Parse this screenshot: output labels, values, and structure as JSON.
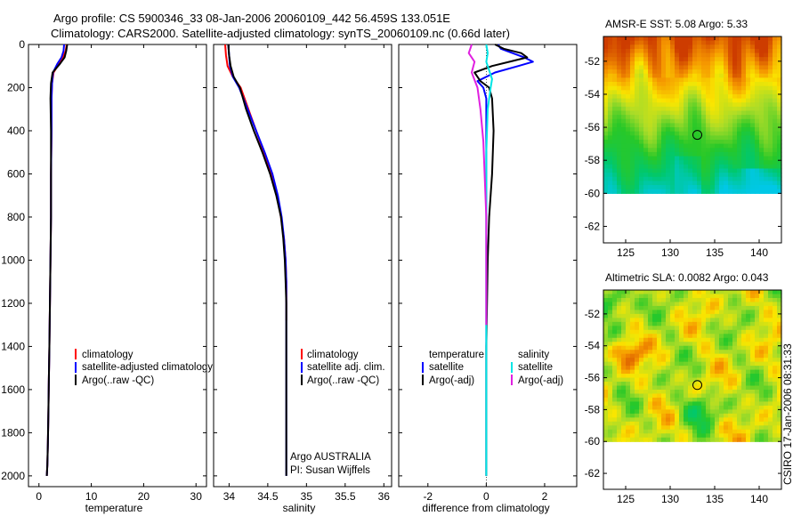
{
  "header": {
    "title_line1": "Argo profile: CS 5900346_33 08-Jan-2006 20060109_442 56.459S 133.051E",
    "title_line2": "Climatology: CARS2000. Satellite-adjusted climatology: synTS_20060109.nc (0.66d later)"
  },
  "colors": {
    "climatology": "#ff0000",
    "satellite": "#0000ff",
    "argo": "#000000",
    "satellite_salinity": "#00e5e5",
    "argo_salinity": "#e020e0"
  },
  "chart_data": [
    {
      "type": "line",
      "name": "temperature-profile",
      "xlabel": "temperature",
      "ylabel": "",
      "xlim": [
        -2,
        32
      ],
      "ylim": [
        2050,
        0
      ],
      "xticks": [
        0,
        10,
        20,
        30
      ],
      "yticks": [
        0,
        200,
        400,
        600,
        800,
        1000,
        1200,
        1400,
        1600,
        1800,
        2000
      ],
      "series": [
        {
          "name": "climatology",
          "color": "#ff0000",
          "x": [
            5.3,
            5.1,
            4.6,
            3.8,
            2.8,
            2.5,
            2.4,
            2.4,
            2.3,
            2.3,
            2.2,
            2.1,
            2.0,
            1.9,
            1.8,
            1.7,
            1.6,
            1.5
          ],
          "y": [
            0,
            30,
            60,
            90,
            130,
            180,
            250,
            400,
            600,
            800,
            1000,
            1200,
            1400,
            1550,
            1700,
            1850,
            1950,
            2000
          ]
        },
        {
          "name": "satellite-adjusted climatology",
          "color": "#0000ff",
          "x": [
            4.8,
            4.7,
            4.3,
            3.5,
            2.7,
            2.5,
            2.4,
            2.4,
            2.3,
            2.3,
            2.2,
            2.1,
            2.0,
            1.9,
            1.8,
            1.7,
            1.6,
            1.5
          ],
          "y": [
            0,
            30,
            60,
            90,
            130,
            180,
            250,
            400,
            600,
            800,
            1000,
            1200,
            1400,
            1550,
            1700,
            1850,
            1950,
            2000
          ]
        },
        {
          "name": "Argo(..raw -QC)",
          "color": "#000000",
          "x": [
            5.4,
            5.2,
            4.9,
            4.0,
            2.6,
            2.3,
            2.2,
            2.3,
            2.3,
            2.3,
            2.2,
            2.1,
            2.0,
            1.9,
            1.8,
            1.7,
            1.6,
            1.5
          ],
          "y": [
            0,
            30,
            60,
            90,
            130,
            180,
            250,
            400,
            600,
            800,
            1000,
            1200,
            1400,
            1550,
            1700,
            1850,
            1950,
            2000
          ]
        }
      ],
      "legend": [
        "climatology",
        "satellite-adjusted climatology",
        "Argo(..raw -QC)"
      ]
    },
    {
      "type": "line",
      "name": "salinity-profile",
      "xlabel": "salinity",
      "ylabel": "",
      "xlim": [
        33.8,
        36.1
      ],
      "ylim": [
        2050,
        0
      ],
      "xticks": [
        34,
        34.5,
        35,
        35.5,
        36
      ],
      "series": [
        {
          "name": "climatology",
          "color": "#ff0000",
          "x": [
            33.95,
            33.96,
            33.98,
            34.05,
            34.15,
            34.25,
            34.35,
            34.45,
            34.55,
            34.62,
            34.67,
            34.71,
            34.73,
            34.74,
            34.74,
            34.74
          ],
          "y": [
            0,
            50,
            100,
            150,
            200,
            300,
            400,
            500,
            600,
            700,
            800,
            900,
            1000,
            1100,
            1200,
            1280
          ]
        },
        {
          "name": "satellite adj. clim.",
          "color": "#0000ff",
          "x": [
            33.99,
            34.0,
            34.01,
            34.05,
            34.13,
            34.24,
            34.35,
            34.46,
            34.56,
            34.63,
            34.68,
            34.71,
            34.73,
            34.74,
            34.74,
            34.74,
            34.74,
            34.74,
            34.74,
            34.74
          ],
          "y": [
            0,
            50,
            100,
            150,
            200,
            300,
            400,
            500,
            600,
            700,
            800,
            900,
            1000,
            1100,
            1200,
            1400,
            1600,
            1800,
            1950,
            2000
          ]
        },
        {
          "name": "Argo(..raw -QC)",
          "color": "#000000",
          "x": [
            33.99,
            34.0,
            34.02,
            34.06,
            34.14,
            34.22,
            34.32,
            34.43,
            34.53,
            34.61,
            34.67,
            34.7,
            34.72,
            34.73,
            34.74,
            34.74,
            34.74,
            34.74,
            34.74,
            34.74
          ],
          "y": [
            0,
            50,
            100,
            150,
            200,
            300,
            400,
            500,
            600,
            700,
            800,
            900,
            1000,
            1100,
            1200,
            1400,
            1600,
            1800,
            1950,
            2000
          ]
        }
      ],
      "legend": [
        "climatology",
        "satellite adj. clim.",
        "Argo(..raw -QC)"
      ],
      "annotation": [
        "Argo AUSTRALIA",
        "PI: Susan Wijffels"
      ]
    },
    {
      "type": "line",
      "name": "difference-profile",
      "xlabel": "difference from climatology",
      "ylabel": "",
      "xlim": [
        -3,
        3.1
      ],
      "ylim": [
        2050,
        0
      ],
      "xticks": [
        -2,
        0,
        2
      ],
      "series": [
        {
          "name": "temperature satellite",
          "color": "#0000ff",
          "x": [
            0.4,
            0.5,
            0.9,
            1.3,
            1.6,
            1.1,
            0.3,
            -0.3,
            -0.1,
            0.0,
            0.0,
            0.0,
            0.0,
            0.0,
            0.0,
            0.0,
            0.0
          ],
          "y": [
            0,
            20,
            40,
            60,
            80,
            100,
            130,
            170,
            200,
            250,
            400,
            600,
            800,
            1000,
            1400,
            1800,
            2000
          ]
        },
        {
          "name": "temperature Argo(-adj)",
          "color": "#000000",
          "x": [
            0.3,
            0.6,
            1.2,
            1.4,
            0.8,
            0.2,
            -0.4,
            -0.2,
            0.1,
            0.2,
            0.25,
            0.2,
            0.1,
            0.05,
            0.0,
            0.0,
            0.0
          ],
          "y": [
            0,
            20,
            40,
            60,
            80,
            100,
            130,
            170,
            200,
            250,
            400,
            600,
            800,
            1000,
            1400,
            1800,
            2000
          ]
        },
        {
          "name": "salinity satellite",
          "color": "#00e5e5",
          "x": [
            0.0,
            0.05,
            0.0,
            0.1,
            0.2,
            0.15,
            0.05,
            0.0,
            0.0,
            0.0,
            0.0,
            0.0
          ],
          "y": [
            0,
            40,
            80,
            120,
            160,
            200,
            300,
            500,
            800,
            1200,
            1600,
            2000
          ]
        },
        {
          "name": "salinity Argo(-adj)",
          "color": "#e020e0",
          "x": [
            -0.5,
            -0.6,
            -0.4,
            -0.5,
            -0.3,
            -0.2,
            -0.1,
            0.0,
            0.0,
            0.0
          ],
          "y": [
            0,
            40,
            80,
            130,
            200,
            300,
            450,
            800,
            1200,
            1300
          ]
        }
      ],
      "legend_temperature": [
        "temperature",
        "satellite",
        "Argo(-adj)"
      ],
      "legend_salinity": [
        "salinity",
        "satellite",
        "Argo(-adj)"
      ]
    },
    {
      "type": "heatmap",
      "name": "amsr-sst-map",
      "title": "AMSR-E SST: 5.08  Argo: 5.33",
      "xlim": [
        122.5,
        142.5
      ],
      "ylim": [
        -63,
        -50.5
      ],
      "xticks": [
        125,
        130,
        135,
        140
      ],
      "yticks": [
        -52,
        -54,
        -56,
        -58,
        -60,
        -62
      ],
      "marker": {
        "lon": 133.051,
        "lat": -56.459
      }
    },
    {
      "type": "heatmap",
      "name": "altimetric-sla-map",
      "title": "Altimetric SLA: 0.0082  Argo: 0.043",
      "xlim": [
        122.5,
        142.5
      ],
      "ylim": [
        -63,
        -50.5
      ],
      "xticks": [
        125,
        130,
        135,
        140
      ],
      "yticks": [
        -52,
        -54,
        -56,
        -58,
        -60,
        -62
      ],
      "marker": {
        "lon": 133.051,
        "lat": -56.459
      }
    }
  ],
  "footer": {
    "credit": "CSIRO 17-Jan-2006 08:31:33"
  }
}
